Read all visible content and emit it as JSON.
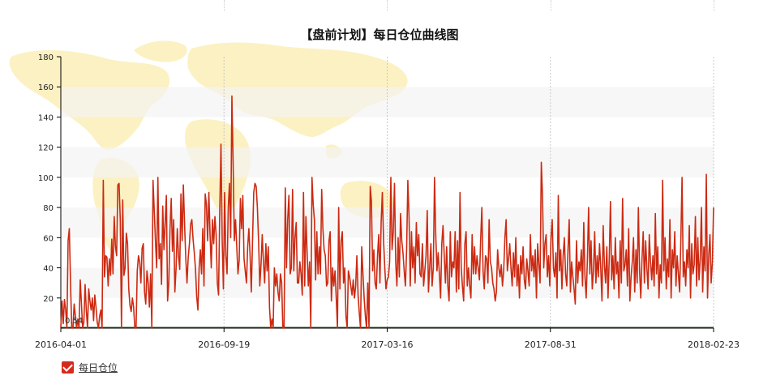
{
  "chart_data": {
    "type": "line",
    "title": "【盘前计划】每日仓位曲线图",
    "xlabel": "",
    "ylabel": "",
    "ylim": [
      0,
      180
    ],
    "yticks": [
      20,
      40,
      60,
      80,
      100,
      120,
      140,
      160,
      180
    ],
    "x_tick_labels": [
      "2016-04-01",
      "2016-09-19",
      "2017-03-16",
      "2017-08-31",
      "2018-02-23"
    ],
    "x_range": [
      "2016-04-01",
      "2018-02-23"
    ],
    "grid": "horizontal bands, dotted vertical lines at x ticks",
    "legend": "bottom-left",
    "series": [
      {
        "name": "每日仓位",
        "color": "#cc2a12",
        "start_label": "0.54",
        "values": [
          0.54,
          18,
          3,
          19,
          12,
          0,
          58,
          66,
          30,
          0,
          0,
          16,
          8,
          0,
          6,
          0,
          32,
          16,
          0,
          4,
          29,
          12,
          0,
          26,
          18,
          12,
          20,
          5,
          22,
          14,
          4,
          0,
          8,
          12,
          0,
          98,
          34,
          48,
          47,
          28,
          46,
          35,
          59,
          36,
          74,
          54,
          48,
          95,
          96,
          72,
          0,
          85,
          35,
          40,
          63,
          56,
          26,
          15,
          11,
          20,
          14,
          0,
          0,
          38,
          48,
          44,
          30,
          53,
          56,
          24,
          16,
          38,
          30,
          14,
          36,
          0,
          98,
          78,
          58,
          40,
          100,
          46,
          56,
          29,
          81,
          52,
          70,
          88,
          18,
          30,
          66,
          86,
          51,
          72,
          24,
          40,
          66,
          48,
          39,
          89,
          58,
          95,
          69,
          46,
          30,
          47,
          56,
          69,
          72,
          59,
          50,
          39,
          21,
          12,
          40,
          52,
          36,
          66,
          28,
          89,
          82,
          58,
          90,
          62,
          40,
          72,
          56,
          74,
          62,
          30,
          22,
          78,
          122,
          58,
          26,
          90,
          48,
          36,
          80,
          96,
          60,
          154,
          110,
          58,
          72,
          54,
          36,
          45,
          86,
          66,
          88,
          46,
          38,
          30,
          54,
          66,
          48,
          24,
          58,
          90,
          96,
          94,
          80,
          58,
          28,
          42,
          62,
          44,
          30,
          56,
          38,
          54,
          14,
          0,
          6,
          0,
          40,
          28,
          36,
          24,
          18,
          36,
          30,
          0,
          0,
          93,
          40,
          72,
          88,
          36,
          40,
          92,
          38,
          60,
          70,
          30,
          30,
          44,
          36,
          22,
          90,
          28,
          74,
          50,
          28,
          44,
          0,
          100,
          82,
          72,
          32,
          64,
          36,
          54,
          36,
          92,
          66,
          52,
          48,
          28,
          30,
          58,
          64,
          18,
          40,
          28,
          38,
          20,
          0,
          80,
          26,
          58,
          64,
          30,
          40,
          8,
          0,
          38,
          34,
          28,
          22,
          32,
          20,
          28,
          48,
          22,
          10,
          0,
          54,
          36,
          20,
          8,
          0,
          30,
          0,
          94,
          84,
          38,
          52,
          30,
          26,
          48,
          62,
          30,
          70,
          90,
          58,
          40,
          26,
          32,
          34,
          44,
          100,
          52,
          64,
          96,
          44,
          28,
          60,
          34,
          76,
          58,
          50,
          38,
          28,
          52,
          98,
          74,
          28,
          64,
          40,
          54,
          30,
          70,
          48,
          62,
          36,
          34,
          56,
          28,
          38,
          48,
          78,
          24,
          40,
          56,
          28,
          40,
          100,
          62,
          38,
          50,
          36,
          20,
          56,
          68,
          48,
          30,
          54,
          28,
          18,
          64,
          34,
          44,
          40,
          64,
          24,
          58,
          26,
          90,
          40,
          28,
          18,
          56,
          64,
          28,
          40,
          28,
          20,
          62,
          36,
          54,
          36,
          48,
          40,
          32,
          58,
          80,
          38,
          26,
          48,
          46,
          30,
          72,
          44,
          40,
          30,
          26,
          18,
          24,
          52,
          40,
          34,
          42,
          28,
          38,
          60,
          72,
          38,
          46,
          56,
          40,
          28,
          50,
          34,
          60,
          28,
          42,
          20,
          48,
          36,
          54,
          32,
          26,
          46,
          38,
          28,
          62,
          38,
          48,
          34,
          52,
          20,
          56,
          42,
          30,
          110,
          88,
          40,
          56,
          62,
          34,
          48,
          28,
          60,
          72,
          40,
          34,
          50,
          20,
          88,
          38,
          52,
          26,
          48,
          60,
          36,
          28,
          52,
          72,
          24,
          44,
          34,
          26,
          16,
          58,
          30,
          44,
          38,
          52,
          28,
          70,
          34,
          20,
          46,
          80,
          36,
          58,
          26,
          38,
          64,
          30,
          48,
          34,
          56,
          40,
          18,
          68,
          42,
          30,
          54,
          20,
          46,
          84,
          32,
          48,
          26,
          60,
          36,
          44,
          20,
          58,
          30,
          86,
          38,
          42,
          52,
          28,
          66,
          18,
          34,
          44,
          60,
          24,
          52,
          30,
          80,
          38,
          20,
          46,
          64,
          30,
          58,
          40,
          26,
          62,
          44,
          32,
          48,
          28,
          76,
          36,
          54,
          20,
          42,
          30,
          98,
          38,
          60,
          26,
          46,
          34,
          72,
          20,
          52,
          40,
          64,
          28,
          48,
          36,
          24,
          58,
          100,
          34,
          44,
          28,
          52,
          40,
          68,
          20,
          56,
          36,
          42,
          74,
          28,
          60,
          32,
          46,
          80,
          24,
          54,
          38,
          102,
          20,
          48,
          62,
          30,
          44,
          80
        ]
      }
    ]
  }
}
